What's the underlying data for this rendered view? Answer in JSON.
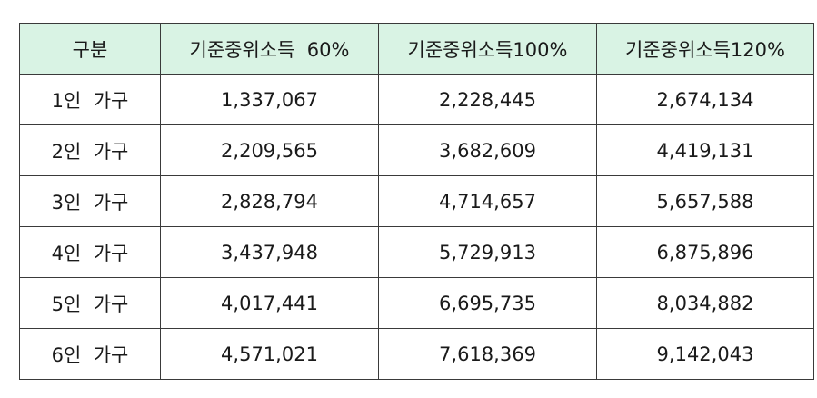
{
  "table": {
    "headers": [
      "구분",
      "기준중위소득  60%",
      "기준중위소득100%",
      "기준중위소득120%"
    ],
    "rows": [
      [
        "1인  가구",
        "1,337,067",
        "2,228,445",
        "2,674,134"
      ],
      [
        "2인  가구",
        "2,209,565",
        "3,682,609",
        "4,419,131"
      ],
      [
        "3인  가구",
        "2,828,794",
        "4,714,657",
        "5,657,588"
      ],
      [
        "4인  가구",
        "3,437,948",
        "5,729,913",
        "6,875,896"
      ],
      [
        "5인  가구",
        "4,017,441",
        "6,695,735",
        "8,034,882"
      ],
      [
        "6인  가구",
        "4,571,021",
        "7,618,369",
        "9,142,043"
      ]
    ],
    "colors": {
      "header_background": "#d9f3e4",
      "border": "#3a3a3a",
      "text": "#1a1a1a"
    }
  }
}
